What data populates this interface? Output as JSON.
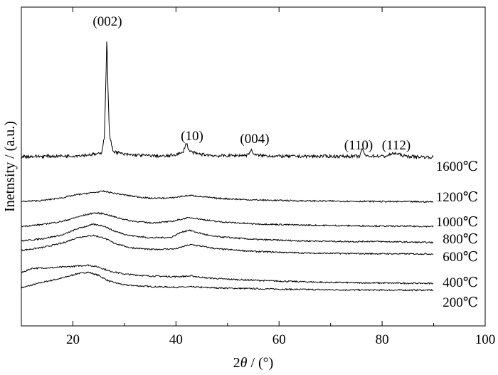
{
  "chart_data": {
    "type": "line",
    "title": "",
    "xlabel_parts": [
      "2",
      "θ",
      " / (°)"
    ],
    "ylabel": "Inetnsity / (a.u.)",
    "xlim": [
      10,
      100
    ],
    "x_ticks": [
      20,
      40,
      60,
      80,
      100
    ],
    "y_ticks_shown": false,
    "grid": false,
    "legend": "none",
    "series": [
      {
        "name": "200℃",
        "points": [
          [
            10,
            0.05
          ],
          [
            14,
            0.9
          ],
          [
            18,
            1.6
          ],
          [
            21,
            2.3
          ],
          [
            23,
            2.5
          ],
          [
            25,
            2.0
          ],
          [
            27,
            1.1
          ],
          [
            30,
            0.5
          ],
          [
            35,
            0.25
          ],
          [
            40,
            0.15
          ],
          [
            43,
            0.2
          ],
          [
            46,
            0.1
          ],
          [
            50,
            0.0
          ],
          [
            60,
            -0.15
          ],
          [
            70,
            -0.25
          ],
          [
            80,
            -0.3
          ],
          [
            90,
            -0.3
          ]
        ]
      },
      {
        "name": "400℃",
        "points": [
          [
            10,
            1.4
          ],
          [
            12,
            2.1
          ],
          [
            16,
            2.2
          ],
          [
            20,
            2.4
          ],
          [
            23,
            2.6
          ],
          [
            25,
            2.3
          ],
          [
            27,
            1.7
          ],
          [
            30,
            1.2
          ],
          [
            35,
            0.9
          ],
          [
            40,
            0.8
          ],
          [
            43,
            0.9
          ],
          [
            46,
            0.6
          ],
          [
            50,
            0.4
          ],
          [
            60,
            0.1
          ],
          [
            70,
            -0.1
          ],
          [
            80,
            -0.2
          ],
          [
            90,
            -0.25
          ]
        ]
      },
      {
        "name": "600℃",
        "points": [
          [
            10,
            0.45
          ],
          [
            14,
            0.9
          ],
          [
            18,
            1.6
          ],
          [
            21,
            2.5
          ],
          [
            24,
            2.8
          ],
          [
            26,
            2.4
          ],
          [
            28,
            1.6
          ],
          [
            31,
            0.9
          ],
          [
            35,
            0.6
          ],
          [
            40,
            0.7
          ],
          [
            42,
            1.2
          ],
          [
            43,
            1.35
          ],
          [
            45,
            1.1
          ],
          [
            48,
            0.7
          ],
          [
            55,
            0.3
          ],
          [
            65,
            0.05
          ],
          [
            75,
            -0.05
          ],
          [
            90,
            -0.1
          ]
        ]
      },
      {
        "name": "800℃",
        "points": [
          [
            10,
            0.15
          ],
          [
            14,
            0.5
          ],
          [
            18,
            1.1
          ],
          [
            21,
            2.1
          ],
          [
            24,
            2.75
          ],
          [
            26,
            2.5
          ],
          [
            28,
            1.7
          ],
          [
            31,
            1.0
          ],
          [
            35,
            0.65
          ],
          [
            39,
            0.7
          ],
          [
            41,
            1.5
          ],
          [
            42.5,
            1.85
          ],
          [
            44,
            1.5
          ],
          [
            47,
            0.9
          ],
          [
            55,
            0.4
          ],
          [
            65,
            0.15
          ],
          [
            75,
            0.05
          ],
          [
            78,
            0.1
          ],
          [
            80,
            0.05
          ],
          [
            90,
            -0.1
          ]
        ]
      },
      {
        "name": "1000℃",
        "points": [
          [
            10,
            0.2
          ],
          [
            14,
            0.5
          ],
          [
            18,
            1.0
          ],
          [
            21,
            1.7
          ],
          [
            24,
            2.3
          ],
          [
            26,
            2.2
          ],
          [
            28,
            1.7
          ],
          [
            31,
            1.1
          ],
          [
            35,
            0.75
          ],
          [
            39,
            0.95
          ],
          [
            42,
            1.5
          ],
          [
            43,
            1.55
          ],
          [
            45,
            1.3
          ],
          [
            48,
            0.95
          ],
          [
            55,
            0.6
          ],
          [
            65,
            0.4
          ],
          [
            80,
            0.25
          ],
          [
            90,
            0.2
          ]
        ]
      },
      {
        "name": "1200℃",
        "points": [
          [
            10,
            0.2
          ],
          [
            14,
            0.35
          ],
          [
            18,
            0.8
          ],
          [
            21,
            1.3
          ],
          [
            24,
            1.6
          ],
          [
            26,
            1.8
          ],
          [
            28,
            1.5
          ],
          [
            31,
            1.1
          ],
          [
            35,
            0.7
          ],
          [
            39,
            0.75
          ],
          [
            42,
            1.1
          ],
          [
            43,
            1.15
          ],
          [
            45,
            0.95
          ],
          [
            48,
            0.7
          ],
          [
            55,
            0.45
          ],
          [
            65,
            0.3
          ],
          [
            80,
            0.2
          ],
          [
            90,
            0.15
          ]
        ]
      },
      {
        "name": "1600℃",
        "points": [
          [
            10,
            0.1
          ],
          [
            20,
            0.15
          ],
          [
            25.5,
            0.3
          ],
          [
            26.1,
            1.5
          ],
          [
            26.4,
            5.5
          ],
          [
            26.6,
            9.0
          ],
          [
            26.8,
            5.2
          ],
          [
            27.1,
            1.6
          ],
          [
            27.8,
            0.5
          ],
          [
            30,
            0.25
          ],
          [
            38,
            0.12
          ],
          [
            41.3,
            0.35
          ],
          [
            42,
            1.1
          ],
          [
            42.6,
            0.5
          ],
          [
            44,
            0.3
          ],
          [
            48,
            0.15
          ],
          [
            53.8,
            0.2
          ],
          [
            54.6,
            0.55
          ],
          [
            55.4,
            0.2
          ],
          [
            60,
            0.12
          ],
          [
            75.7,
            0.12
          ],
          [
            76.2,
            0.7
          ],
          [
            76.7,
            0.15
          ],
          [
            80.5,
            0.12
          ],
          [
            82.5,
            0.35
          ],
          [
            84.5,
            0.12
          ],
          [
            90,
            0.05
          ]
        ]
      }
    ],
    "annotations": [
      {
        "text": "(002)",
        "x": 26.6
      },
      {
        "text": "(10)",
        "x": 42.0
      },
      {
        "text": "(004)",
        "x": 54.6
      },
      {
        "text": "(110)",
        "x": 76.2
      },
      {
        "text": "(112)",
        "x": 82.5
      }
    ]
  }
}
